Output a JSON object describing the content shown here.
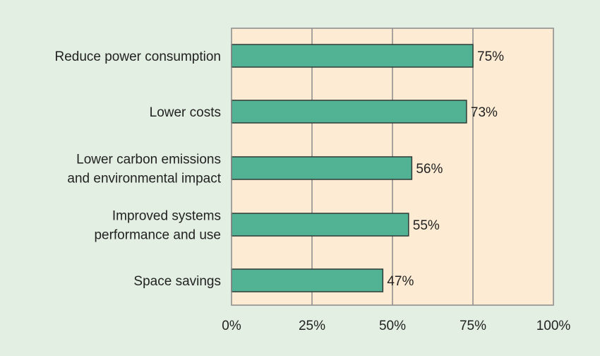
{
  "chart_data": {
    "type": "bar",
    "orientation": "horizontal",
    "categories": [
      [
        "Reduce power consumption"
      ],
      [
        "Lower costs"
      ],
      [
        "Lower carbon emissions",
        "and environmental impact"
      ],
      [
        "Improved systems",
        "performance and use"
      ],
      [
        "Space savings"
      ]
    ],
    "values": [
      75,
      73,
      56,
      55,
      47
    ],
    "value_labels": [
      "75%",
      "73%",
      "56%",
      "55%",
      "47%"
    ],
    "x_ticks": [
      0,
      25,
      50,
      75,
      100
    ],
    "x_tick_labels": [
      "0%",
      "25%",
      "50%",
      "75%",
      "100%"
    ],
    "xlim": [
      0,
      100
    ],
    "title": "",
    "xlabel": "",
    "ylabel": "",
    "grid": true
  },
  "colors": {
    "background": "#e3efe2",
    "plot_background": "#fdebd3",
    "bar_fill": "#52b394",
    "bar_stroke": "#2f3b37",
    "grid": "#8a8a8a",
    "text": "#222222"
  }
}
